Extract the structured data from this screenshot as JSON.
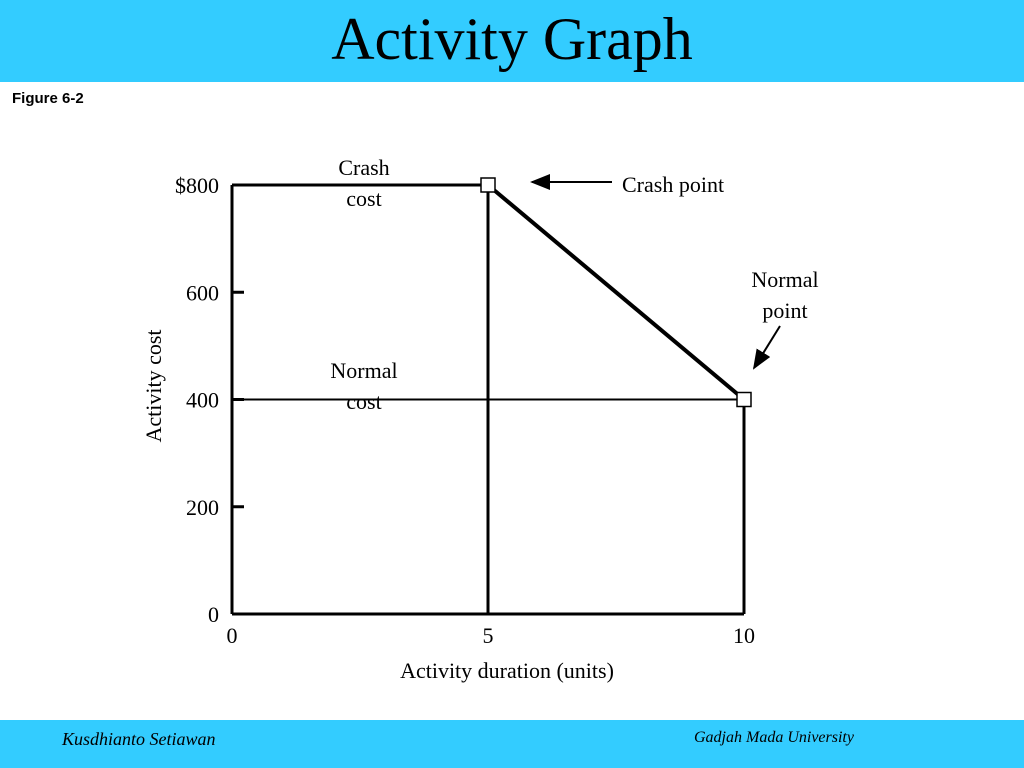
{
  "slide": {
    "title": "Activity Graph",
    "figure_label": "Figure 6-2",
    "footer_left": "Kusdhianto Setiawan",
    "footer_right": "Gadjah Mada University",
    "banner_color": "#33CCFF"
  },
  "chart_data": {
    "type": "line",
    "xlabel": "Activity duration (units)",
    "ylabel": "Activity cost",
    "xlim": [
      0,
      10
    ],
    "ylim": [
      0,
      800
    ],
    "x_ticks": [
      0,
      5,
      10
    ],
    "x_tick_labels": [
      "0",
      "5",
      "10"
    ],
    "y_ticks": [
      0,
      200,
      400,
      600,
      800
    ],
    "y_tick_labels": [
      "0",
      "200",
      "400",
      "600",
      "$800"
    ],
    "series": [
      {
        "points": [
          {
            "x": 5,
            "y": 800
          },
          {
            "x": 10,
            "y": 400
          }
        ]
      }
    ],
    "points": [
      {
        "label": "Crash point",
        "x": 5,
        "y": 800
      },
      {
        "label": "Normal point",
        "x": 10,
        "y": 400
      }
    ],
    "reference_lines": [
      {
        "label": "Crash cost",
        "y": 800
      },
      {
        "label": "Normal cost",
        "y": 400
      }
    ],
    "annotations": {
      "crash_cost_line1": "Crash",
      "crash_cost_line2": "cost",
      "normal_cost_line1": "Normal",
      "normal_cost_line2": "cost",
      "crash_point": "Crash point",
      "normal_point_line1": "Normal",
      "normal_point_line2": "point"
    }
  }
}
